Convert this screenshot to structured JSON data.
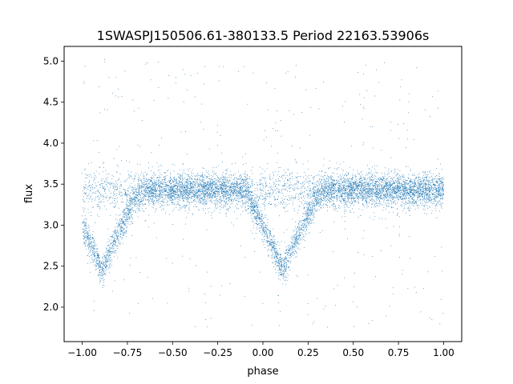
{
  "chart_data": {
    "type": "scatter",
    "title": "1SWASPJ150506.61-380133.5 Period 22163.53906s",
    "xlabel": "phase",
    "ylabel": "flux",
    "xlim": [
      -1.1,
      1.1
    ],
    "ylim": [
      1.58,
      5.18
    ],
    "xticks": [
      -1.0,
      -0.75,
      -0.5,
      -0.25,
      0.0,
      0.25,
      0.5,
      0.75,
      1.0
    ],
    "xtick_labels": [
      "−1.00",
      "−0.75",
      "−0.50",
      "−0.25",
      "0.00",
      "0.25",
      "0.50",
      "0.75",
      "1.00"
    ],
    "yticks": [
      2.0,
      2.5,
      3.0,
      3.5,
      4.0,
      4.5,
      5.0
    ],
    "ytick_labels": [
      "2.0",
      "2.5",
      "3.0",
      "3.5",
      "4.0",
      "4.5",
      "5.0"
    ],
    "grid": false,
    "legend": "none",
    "marker_color": "#1f77b4",
    "phase_range": [
      -1.0,
      1.0
    ],
    "baseline_flux": 3.43,
    "eclipses": [
      {
        "center_phase": -0.89,
        "min_flux": 2.45
      },
      {
        "center_phase": 0.11,
        "min_flux": 2.45
      }
    ]
  }
}
